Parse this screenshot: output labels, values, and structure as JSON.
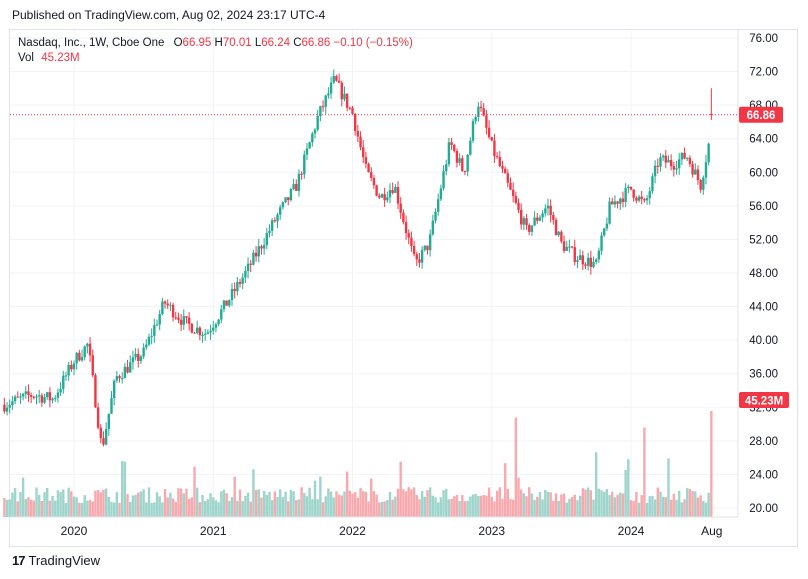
{
  "header": {
    "published": "Published on TradingView.com, Aug 02, 2024 23:17 UTC-4"
  },
  "legend": {
    "symbol": "Nasdaq, Inc., 1W, Cboe One",
    "o_label": "O",
    "o": "66.95",
    "h_label": "H",
    "h": "70.01",
    "l_label": "L",
    "l": "66.24",
    "c_label": "C",
    "c": "66.86",
    "change": "−0.10 (−0.15%)",
    "vol_label": "Vol",
    "vol": "45.23M"
  },
  "footer": {
    "logo_text": "17",
    "brand": "TradingView"
  },
  "colors": {
    "up": "#22ab94",
    "down": "#f23645",
    "vol_up": "#9dd4cb",
    "vol_down": "#f7a9ae"
  },
  "chart_data": {
    "type": "candlestick",
    "ylim": [
      18,
      78
    ],
    "y_ticks": [
      "76.00",
      "72.00",
      "68.00",
      "64.00",
      "60.00",
      "56.00",
      "52.00",
      "48.00",
      "44.00",
      "40.00",
      "36.00",
      "32.00",
      "28.00",
      "24.00",
      "20.00"
    ],
    "x_ticks": [
      "2020",
      "2021",
      "2022",
      "2023",
      "2024",
      "Aug"
    ],
    "x_tick_dates": [
      2020.0,
      2021.0,
      2022.0,
      2023.0,
      2024.0,
      2024.58
    ],
    "last_price": "66.86",
    "last_volume_label": "45.23M",
    "price_path": [
      [
        2019.5,
        32.3
      ],
      [
        2019.7,
        33.5
      ],
      [
        2019.85,
        33.0
      ],
      [
        2020.0,
        37.5
      ],
      [
        2020.1,
        39.5
      ],
      [
        2020.2,
        27.0
      ],
      [
        2020.3,
        35.5
      ],
      [
        2020.5,
        38.5
      ],
      [
        2020.65,
        44.5
      ],
      [
        2020.8,
        42.0
      ],
      [
        2020.95,
        40.8
      ],
      [
        2021.1,
        44.5
      ],
      [
        2021.25,
        48.5
      ],
      [
        2021.45,
        54.5
      ],
      [
        2021.6,
        58.5
      ],
      [
        2021.75,
        66.5
      ],
      [
        2021.87,
        71.0
      ],
      [
        2022.0,
        67.0
      ],
      [
        2022.1,
        60.0
      ],
      [
        2022.2,
        57.0
      ],
      [
        2022.3,
        58.5
      ],
      [
        2022.45,
        49.0
      ],
      [
        2022.55,
        51.5
      ],
      [
        2022.7,
        63.5
      ],
      [
        2022.8,
        60.0
      ],
      [
        2022.9,
        68.5
      ],
      [
        2023.0,
        63.0
      ],
      [
        2023.15,
        57.0
      ],
      [
        2023.25,
        53.0
      ],
      [
        2023.4,
        56.0
      ],
      [
        2023.5,
        51.5
      ],
      [
        2023.6,
        50.0
      ],
      [
        2023.75,
        49.0
      ],
      [
        2023.85,
        56.0
      ],
      [
        2024.0,
        58.0
      ],
      [
        2024.1,
        56.0
      ],
      [
        2024.2,
        61.5
      ],
      [
        2024.3,
        61.0
      ],
      [
        2024.4,
        62.0
      ],
      [
        2024.5,
        58.5
      ],
      [
        2024.56,
        63.5
      ],
      [
        2024.585,
        66.86
      ]
    ]
  }
}
